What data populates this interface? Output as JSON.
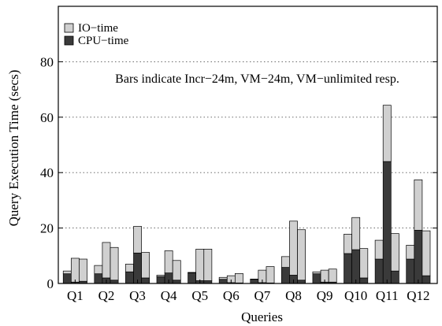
{
  "chart_data": {
    "type": "bar",
    "stacked": true,
    "grouped": true,
    "categories": [
      "Q1",
      "Q2",
      "Q3",
      "Q4",
      "Q5",
      "Q6",
      "Q7",
      "Q8",
      "Q9",
      "Q10",
      "Q11",
      "Q12"
    ],
    "bars_per_group": [
      "Incr-24m",
      "VM-24m",
      "VM-unlimited"
    ],
    "series": [
      {
        "name": "CPU-time",
        "color": "#3a3a3a",
        "values": [
          [
            3.5,
            0.5,
            0.8
          ],
          [
            3.5,
            2.0,
            1.2
          ],
          [
            4.2,
            11.0,
            2.0
          ],
          [
            2.5,
            3.8,
            1.2
          ],
          [
            3.8,
            1.0,
            1.0
          ],
          [
            1.5,
            0.3,
            0.2
          ],
          [
            1.5,
            0.3,
            0.2
          ],
          [
            5.8,
            3.0,
            1.2
          ],
          [
            3.5,
            0.5,
            0.5
          ],
          [
            10.8,
            12.2,
            2.0
          ],
          [
            8.8,
            44.0,
            4.5
          ],
          [
            8.8,
            19.2,
            2.8
          ]
        ]
      },
      {
        "name": "IO-time",
        "color": "#d0d0d0",
        "values": [
          [
            1.0,
            8.6,
            8.0
          ],
          [
            3.0,
            12.8,
            11.8
          ],
          [
            2.8,
            9.6,
            9.2
          ],
          [
            0.5,
            8.0,
            7.1
          ],
          [
            0.2,
            11.4,
            11.4
          ],
          [
            0.7,
            2.5,
            3.4
          ],
          [
            0.1,
            4.5,
            5.9
          ],
          [
            3.9,
            19.5,
            18.2
          ],
          [
            0.7,
            4.3,
            4.7
          ],
          [
            7.0,
            11.6,
            10.6
          ],
          [
            6.8,
            20.3,
            13.5
          ],
          [
            5.0,
            18.2,
            16.2
          ]
        ]
      }
    ],
    "xlabel": "Queries",
    "ylabel": "Query Execution Time (secs)",
    "yticks": [
      0,
      20,
      40,
      60,
      80
    ],
    "ylim": [
      0,
      100
    ],
    "grid": "horizontal dotted",
    "legend": {
      "placement": "top-left",
      "entries": [
        {
          "label": "IO−time",
          "color": "#d0d0d0"
        },
        {
          "label": "CPU−time",
          "color": "#3a3a3a"
        }
      ]
    },
    "annotation": "Bars indicate Incr−24m, VM−24m, VM−unlimited resp."
  }
}
